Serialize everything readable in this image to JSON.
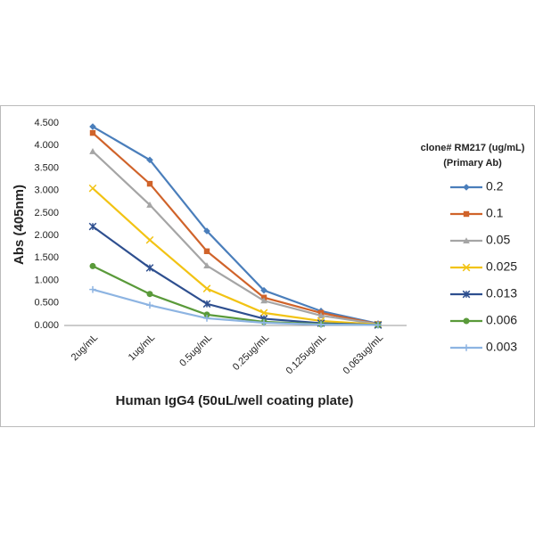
{
  "chart_data": {
    "type": "line",
    "x_label": "Human IgG4 (50uL/well coating plate)",
    "y_label": "Abs (405nm)",
    "legend_title": [
      "clone# RM217 (ug/mL)",
      "(Primary Ab)"
    ],
    "legend_position": "right",
    "grid": false,
    "categories": [
      "2ug/mL",
      "1ug/mL",
      "0.5ug/mL",
      "0.25ug/mL",
      "0.125ug/mL",
      "0.063ug/mL"
    ],
    "ylim": [
      0,
      4.5
    ],
    "yticks": [
      {
        "value": 0,
        "label": "0.000"
      },
      {
        "value": 0.5,
        "label": "0.500"
      },
      {
        "value": 1,
        "label": "1.000"
      },
      {
        "value": 1.5,
        "label": "1.500"
      },
      {
        "value": 2,
        "label": "2.000"
      },
      {
        "value": 2.5,
        "label": "2.500"
      },
      {
        "value": 3,
        "label": "3.000"
      },
      {
        "value": 3.5,
        "label": "3.500"
      },
      {
        "value": 4,
        "label": "4.000"
      },
      {
        "value": 4.5,
        "label": "4.500"
      }
    ],
    "series": [
      {
        "name": "0.2",
        "color": "#4a7ebb",
        "marker": "diamond",
        "values": [
          4.42,
          3.68,
          2.1,
          0.78,
          0.32,
          0.04
        ]
      },
      {
        "name": "0.1",
        "color": "#d0632a",
        "marker": "square",
        "values": [
          4.28,
          3.15,
          1.65,
          0.62,
          0.28,
          0.03
        ]
      },
      {
        "name": "0.05",
        "color": "#a5a5a5",
        "marker": "triangle",
        "values": [
          3.87,
          2.68,
          1.33,
          0.55,
          0.22,
          0.03
        ]
      },
      {
        "name": "0.025",
        "color": "#f2c314",
        "marker": "x",
        "values": [
          3.05,
          1.9,
          0.82,
          0.28,
          0.1,
          0.02
        ]
      },
      {
        "name": "0.013",
        "color": "#2e4f8f",
        "marker": "star",
        "values": [
          2.2,
          1.28,
          0.48,
          0.15,
          0.05,
          0.01
        ]
      },
      {
        "name": "0.006",
        "color": "#5a9a3a",
        "marker": "circle",
        "values": [
          1.32,
          0.7,
          0.24,
          0.08,
          0.03,
          0.01
        ]
      },
      {
        "name": "0.003",
        "color": "#8db4e2",
        "marker": "plus",
        "values": [
          0.8,
          0.45,
          0.16,
          0.06,
          0.02,
          0.01
        ]
      }
    ]
  }
}
